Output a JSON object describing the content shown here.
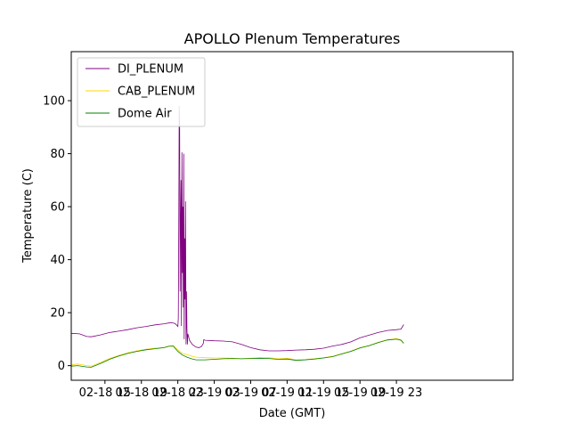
{
  "chart_data": {
    "type": "line",
    "title": "APOLLO Plenum Temperatures",
    "xlabel": "Date (GMT)",
    "ylabel": "Temperature (C)",
    "xlim": [
      11.3,
      59.8
    ],
    "ylim": [
      -5.5,
      118.5
    ],
    "x_unit": "hours since 02-18 00 GMT",
    "x_ticks": [
      {
        "value": 15,
        "label": "02-18 15"
      },
      {
        "value": 19,
        "label": "02-18 19"
      },
      {
        "value": 23,
        "label": "02-18 23"
      },
      {
        "value": 27,
        "label": "02-19 03"
      },
      {
        "value": 31,
        "label": "02-19 07"
      },
      {
        "value": 35,
        "label": "02-19 11"
      },
      {
        "value": 39,
        "label": "02-19 15"
      },
      {
        "value": 43,
        "label": "02-19 19"
      },
      {
        "value": 47,
        "label": "02-19 23"
      }
    ],
    "y_ticks": [
      0,
      20,
      40,
      60,
      80,
      100
    ],
    "grid": false,
    "legend": "upper-left",
    "series": [
      {
        "name": "DI_PLENUM",
        "color": "#800080",
        "x": [
          11.3,
          12.2,
          13.0,
          13.5,
          14.5,
          15.5,
          16.5,
          17.5,
          18.5,
          19.5,
          20.5,
          21.5,
          22.0,
          22.3,
          22.6,
          22.8,
          22.9,
          23.0,
          23.05,
          23.1,
          23.15,
          23.2,
          23.25,
          23.3,
          23.35,
          23.4,
          23.45,
          23.5,
          23.55,
          23.6,
          23.65,
          23.7,
          23.75,
          23.8,
          23.85,
          23.9,
          23.95,
          24.0,
          24.05,
          24.1,
          24.3,
          24.6,
          25.0,
          25.3,
          25.6,
          25.8,
          25.85,
          26.0,
          27.0,
          28.0,
          29.0,
          30.0,
          31.0,
          32.0,
          33.0,
          34.0,
          35.0,
          36.0,
          37.0,
          38.0,
          39.0,
          40.0,
          41.0,
          42.0,
          43.0,
          44.0,
          45.0,
          46.0,
          47.0,
          47.5,
          47.8
        ],
        "y": [
          12.2,
          12.0,
          11.0,
          10.9,
          11.6,
          12.5,
          13.0,
          13.6,
          14.3,
          14.8,
          15.4,
          15.8,
          16.1,
          16.2,
          16.0,
          15.6,
          15.2,
          14.8,
          18,
          52,
          98,
          90,
          28,
          55,
          70,
          15,
          80.5,
          35,
          60,
          22,
          80,
          10,
          48,
          25,
          62,
          8,
          28,
          14,
          8,
          12,
          9.5,
          8.0,
          7.0,
          6.8,
          7.2,
          8.4,
          9.8,
          9.6,
          9.4,
          9.3,
          9.0,
          8.0,
          6.8,
          6.0,
          5.6,
          5.6,
          5.7,
          5.9,
          6.0,
          6.2,
          6.6,
          7.4,
          8.0,
          9.0,
          10.5,
          11.5,
          12.5,
          13.3,
          13.6,
          13.8,
          15.5
        ]
      },
      {
        "name": "CAB_PLENUM",
        "color": "#ffd700",
        "x": [
          11.3,
          12.0,
          13.0,
          13.5,
          14.5,
          15.5,
          16.5,
          17.5,
          18.5,
          19.5,
          20.5,
          21.5,
          22.0,
          22.5,
          23.0,
          23.5,
          24.0,
          24.5,
          25.0,
          26.0,
          27.0,
          28.0,
          29.0,
          30.0,
          31.0,
          32.0,
          33.0,
          34.0,
          35.0,
          36.0,
          37.0,
          38.0,
          39.0,
          40.0,
          41.0,
          42.0,
          43.0,
          44.0,
          45.0,
          46.0,
          47.0,
          47.5,
          47.8
        ],
        "y": [
          0.3,
          0.6,
          0.0,
          -0.2,
          1.2,
          2.7,
          3.8,
          4.8,
          5.6,
          6.2,
          6.6,
          6.9,
          7.4,
          7.5,
          6.0,
          4.6,
          4.2,
          3.6,
          3.2,
          3.0,
          2.9,
          2.9,
          2.8,
          2.6,
          2.8,
          3.0,
          3.0,
          2.6,
          2.8,
          2.2,
          2.4,
          2.6,
          3.0,
          3.5,
          4.5,
          5.5,
          6.8,
          7.6,
          8.8,
          9.8,
          10.2,
          9.8,
          8.6
        ]
      },
      {
        "name": "Dome Air",
        "color": "#008000",
        "x": [
          11.3,
          12.0,
          13.0,
          13.5,
          14.5,
          15.5,
          16.5,
          17.5,
          18.5,
          19.5,
          20.5,
          21.5,
          22.0,
          22.5,
          23.0,
          23.5,
          24.0,
          24.5,
          25.0,
          26.0,
          27.0,
          28.0,
          29.0,
          30.0,
          31.0,
          32.0,
          33.0,
          34.0,
          35.0,
          36.0,
          37.0,
          38.0,
          39.0,
          40.0,
          41.0,
          42.0,
          43.0,
          44.0,
          45.0,
          46.0,
          47.0,
          47.5,
          47.8
        ],
        "y": [
          -0.2,
          0.0,
          -0.5,
          -0.6,
          0.8,
          2.4,
          3.6,
          4.6,
          5.4,
          6.0,
          6.4,
          6.8,
          7.3,
          7.4,
          5.4,
          4.0,
          3.2,
          2.6,
          2.2,
          2.2,
          2.4,
          2.6,
          2.7,
          2.6,
          2.7,
          2.8,
          2.7,
          2.4,
          2.5,
          2.0,
          2.2,
          2.5,
          2.9,
          3.4,
          4.4,
          5.4,
          6.7,
          7.5,
          8.7,
          9.7,
          10.0,
          9.6,
          8.4
        ]
      }
    ]
  }
}
